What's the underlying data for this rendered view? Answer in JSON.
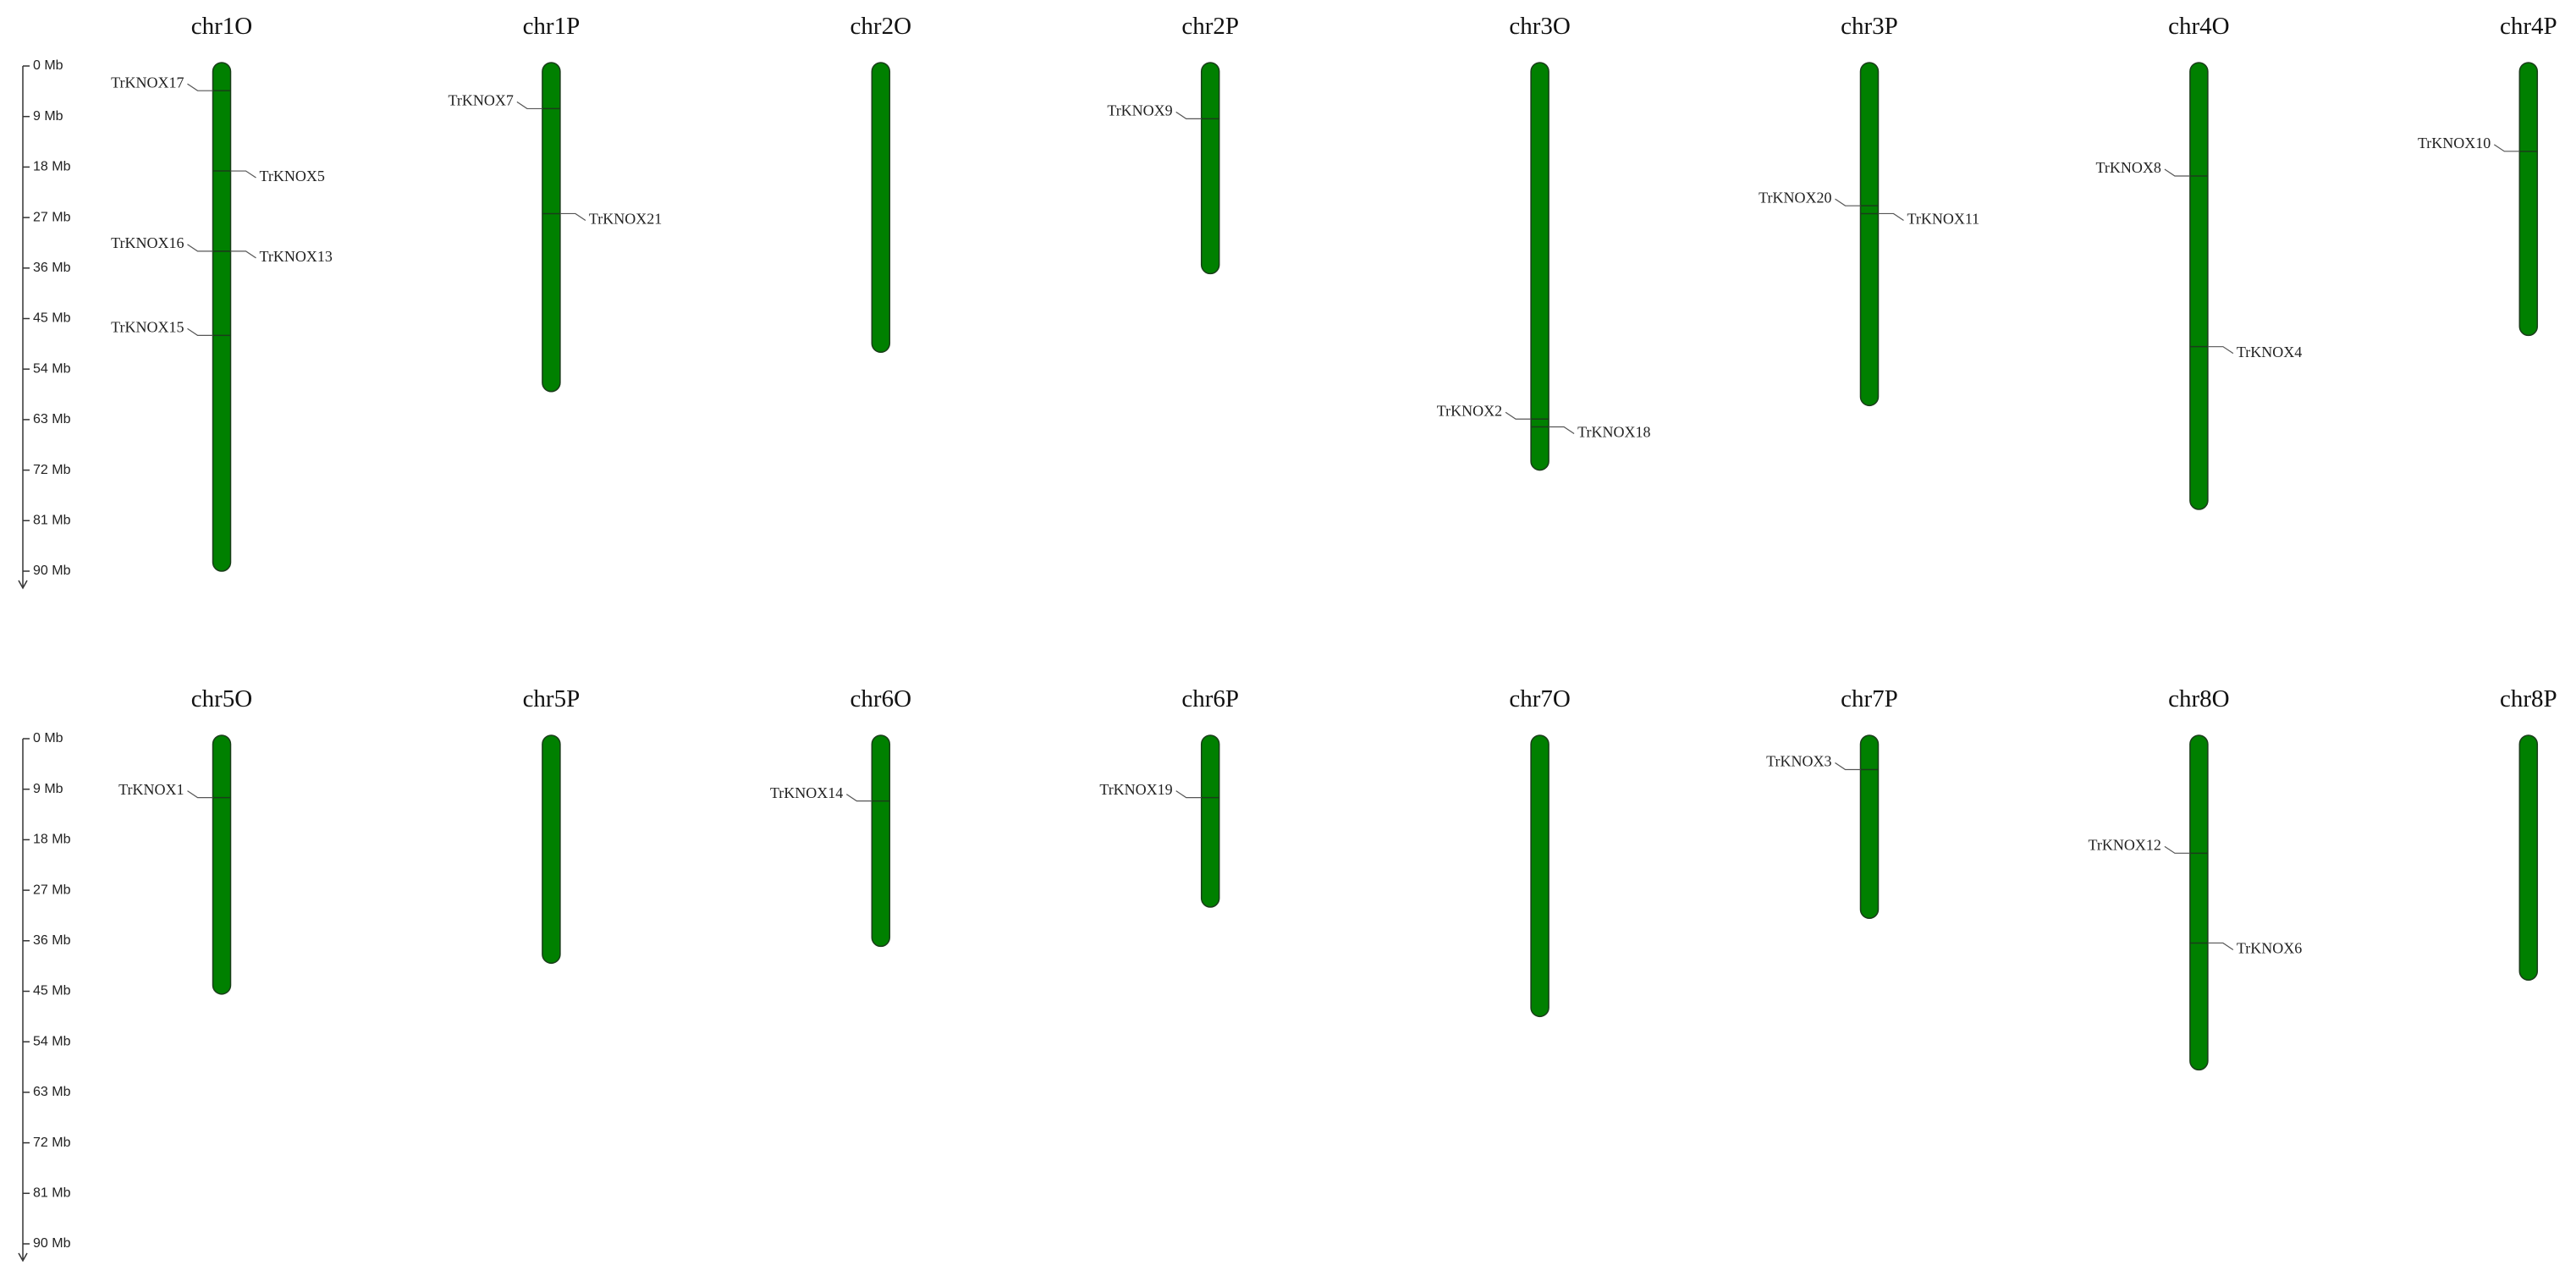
{
  "chart_data": {
    "type": "ideogram",
    "ylim": [
      0,
      90
    ],
    "yticks": [
      {
        "value": 0,
        "label": "0 Mb"
      },
      {
        "value": 9,
        "label": "9 Mb"
      },
      {
        "value": 18,
        "label": "18 Mb"
      },
      {
        "value": 27,
        "label": "27 Mb"
      },
      {
        "value": 36,
        "label": "36 Mb"
      },
      {
        "value": 45,
        "label": "45 Mb"
      },
      {
        "value": 54,
        "label": "54 Mb"
      },
      {
        "value": 63,
        "label": "63 Mb"
      },
      {
        "value": 72,
        "label": "72 Mb"
      },
      {
        "value": 81,
        "label": "81 Mb"
      },
      {
        "value": 90,
        "label": "90 Mb"
      }
    ],
    "color": "#008000",
    "chromosomes": [
      {
        "name": "chr1O",
        "length": 90,
        "genes": [
          {
            "name": "TrKNOX17",
            "position": 4.4,
            "side": "left"
          },
          {
            "name": "TrKNOX5",
            "position": 18.7,
            "side": "right"
          },
          {
            "name": "TrKNOX16",
            "position": 33,
            "side": "left"
          },
          {
            "name": "TrKNOX13",
            "position": 33,
            "side": "right"
          },
          {
            "name": "TrKNOX15",
            "position": 48,
            "side": "left"
          }
        ]
      },
      {
        "name": "chr1P",
        "length": 58,
        "genes": [
          {
            "name": "TrKNOX7",
            "position": 7.6,
            "side": "left"
          },
          {
            "name": "TrKNOX21",
            "position": 26.3,
            "side": "right"
          }
        ]
      },
      {
        "name": "chr2O",
        "length": 51,
        "genes": []
      },
      {
        "name": "chr2P",
        "length": 37,
        "genes": [
          {
            "name": "TrKNOX9",
            "position": 9.4,
            "side": "left"
          }
        ]
      },
      {
        "name": "chr3O",
        "length": 72,
        "genes": [
          {
            "name": "TrKNOX2",
            "position": 62.9,
            "side": "left"
          },
          {
            "name": "TrKNOX18",
            "position": 64.3,
            "side": "right"
          }
        ]
      },
      {
        "name": "chr3P",
        "length": 60.5,
        "genes": [
          {
            "name": "TrKNOX20",
            "position": 24.9,
            "side": "left"
          },
          {
            "name": "TrKNOX11",
            "position": 26.3,
            "side": "right"
          }
        ]
      },
      {
        "name": "chr4O",
        "length": 79,
        "genes": [
          {
            "name": "TrKNOX8",
            "position": 19.6,
            "side": "left"
          },
          {
            "name": "TrKNOX4",
            "position": 50,
            "side": "right"
          }
        ]
      },
      {
        "name": "chr4P",
        "length": 48,
        "genes": [
          {
            "name": "TrKNOX10",
            "position": 15.2,
            "side": "left"
          }
        ]
      },
      {
        "name": "chr5O",
        "length": 45.5,
        "genes": [
          {
            "name": "TrKNOX1",
            "position": 10.5,
            "side": "left"
          }
        ]
      },
      {
        "name": "chr5P",
        "length": 40,
        "genes": []
      },
      {
        "name": "chr6O",
        "length": 37,
        "genes": [
          {
            "name": "TrKNOX14",
            "position": 11.1,
            "side": "left"
          }
        ]
      },
      {
        "name": "chr6P",
        "length": 30,
        "genes": [
          {
            "name": "TrKNOX19",
            "position": 10.5,
            "side": "left"
          }
        ]
      },
      {
        "name": "chr7O",
        "length": 49.5,
        "genes": []
      },
      {
        "name": "chr7P",
        "length": 32,
        "genes": [
          {
            "name": "TrKNOX3",
            "position": 5.5,
            "side": "left"
          }
        ]
      },
      {
        "name": "chr8O",
        "length": 59,
        "genes": [
          {
            "name": "TrKNOX12",
            "position": 20.4,
            "side": "left"
          },
          {
            "name": "TrKNOX6",
            "position": 36.4,
            "side": "right"
          }
        ]
      },
      {
        "name": "chr8P",
        "length": 43,
        "genes": []
      }
    ]
  }
}
